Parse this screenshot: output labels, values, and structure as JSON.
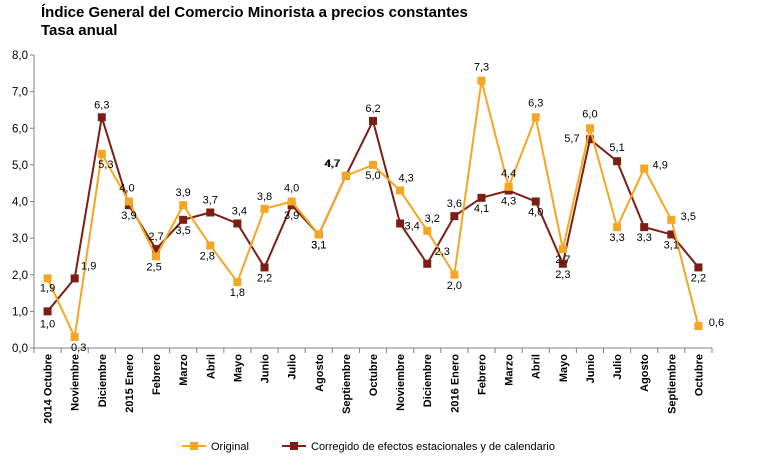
{
  "title_line1": "Índice General del Comercio Minorista a precios constantes",
  "title_line2": "Tasa anual",
  "chart_data": {
    "type": "line",
    "categories": [
      "2014 Octubre",
      "Noviembre",
      "Diciembre",
      "2015 Enero",
      "Febrero",
      "Marzo",
      "Abril",
      "Mayo",
      "Junio",
      "Julio",
      "Agosto",
      "Septiembre",
      "Octubre",
      "Noviembre",
      "Diciembre",
      "2016 Enero",
      "Febrero",
      "Marzo",
      "Abril",
      "Mayo",
      "Junio",
      "Julio",
      "Agosto",
      "Septiembre",
      "Octubre"
    ],
    "ylim": [
      0,
      8
    ],
    "yticks": [
      "0,0",
      "1,0",
      "2,0",
      "3,0",
      "4,0",
      "5,0",
      "6,0",
      "7,0",
      "8,0"
    ],
    "series": [
      {
        "name": "Original",
        "color": "#f5a623",
        "marker": "square",
        "values": [
          1.9,
          0.3,
          5.3,
          4.0,
          2.5,
          3.9,
          2.8,
          1.8,
          3.8,
          4.0,
          3.1,
          4.7,
          5.0,
          4.3,
          3.2,
          2.0,
          7.3,
          4.4,
          6.3,
          2.7,
          6.0,
          3.3,
          4.9,
          3.5,
          0.6
        ],
        "labels": [
          "1,9",
          "0,3",
          "5,3",
          "4,0",
          "2,5",
          "3,9",
          "2,8",
          "1,8",
          "3,8",
          "4,0",
          "3,1",
          "4,7",
          "5,0",
          "4,3",
          "3,2",
          "2,0",
          "7,3",
          "4,4",
          "6,3",
          "2,7",
          "6,0",
          "3,3",
          "4,9",
          "3,5",
          "0,6"
        ]
      },
      {
        "name": "Corregido de efectos estacionales y de calendario",
        "color": "#7b1f14",
        "marker": "square",
        "values": [
          1.0,
          1.9,
          6.3,
          3.9,
          2.7,
          3.5,
          3.7,
          3.4,
          2.2,
          3.9,
          3.1,
          4.7,
          6.2,
          3.4,
          2.3,
          3.6,
          4.1,
          4.3,
          4.0,
          2.3,
          5.7,
          5.1,
          3.3,
          3.1,
          2.2
        ],
        "labels": [
          "1,0",
          "1,9",
          "6,3",
          "3,9",
          "2,7",
          "3,5",
          "3,7",
          "3,4",
          "2,2",
          "3,9",
          "3,1",
          "4,7",
          "6,2",
          "3,4",
          "2,3",
          "3,6",
          "4,1",
          "4,3",
          "4,0",
          "2,3",
          "5,7",
          "5,1",
          "3,3",
          "3,1",
          "2,2"
        ]
      }
    ],
    "grid": false,
    "legend": "bottom"
  }
}
